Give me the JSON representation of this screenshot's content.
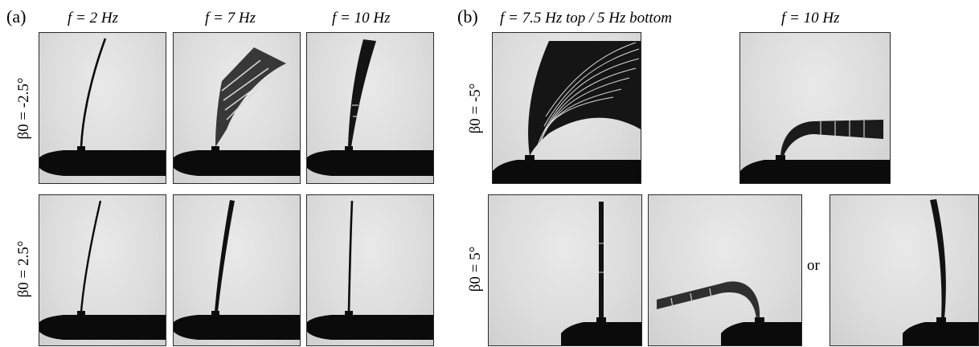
{
  "panel_a": {
    "label": "(a)",
    "col_headers": [
      "f = 2 Hz",
      "f = 7 Hz",
      "f = 10 Hz"
    ],
    "row_labels": [
      "β0 = -2.5°",
      "β0 = 2.5°"
    ]
  },
  "panel_b": {
    "label": "(b)",
    "col_headers": [
      "f = 7.5 Hz top / 5 Hz bottom",
      "f = 10 Hz"
    ],
    "row_labels": [
      "β0 = -5°",
      "β0 = 5°"
    ],
    "or_text": "or"
  }
}
